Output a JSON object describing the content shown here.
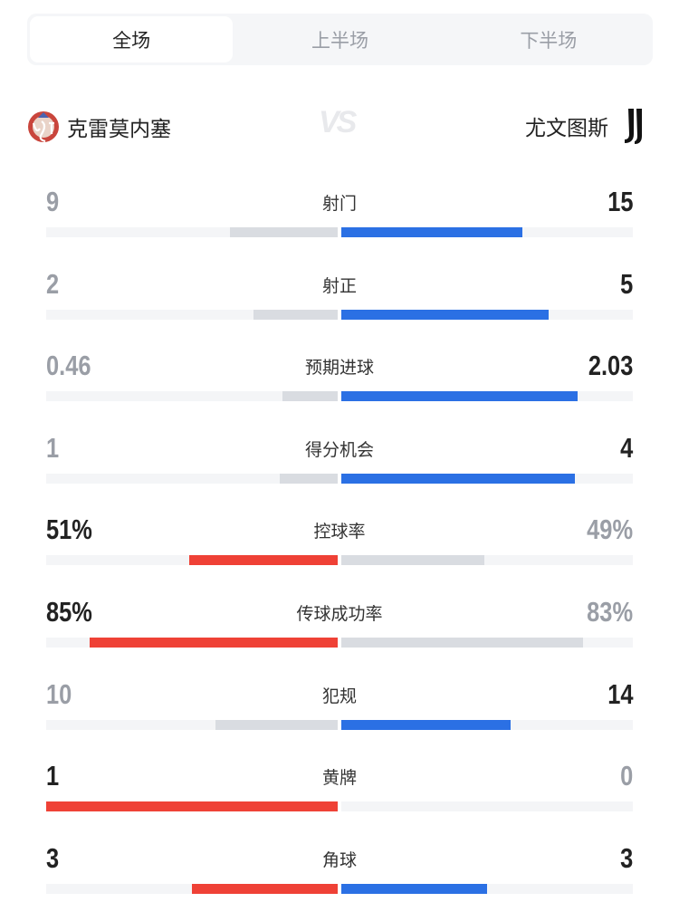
{
  "tabs": [
    {
      "label": "全场",
      "active": true
    },
    {
      "label": "上半场",
      "active": false
    },
    {
      "label": "下半场",
      "active": false
    }
  ],
  "home_team": {
    "name": "克雷莫内塞",
    "logo": "cremonese-crest"
  },
  "away_team": {
    "name": "尤文图斯",
    "logo": "juventus-j-logo"
  },
  "vs_label": "VS",
  "colors": {
    "home": "#ef4136",
    "away": "#2b70e4",
    "loser_bar": "#d9dce1",
    "track": "#f4f5f7",
    "leader_text": "#222222",
    "trailer_text": "#9a9ea6"
  },
  "stats": [
    {
      "label": "射门",
      "home": "9",
      "away": "15",
      "home_fill": 0.37,
      "away_fill": 0.62,
      "leader": "away"
    },
    {
      "label": "射正",
      "home": "2",
      "away": "5",
      "home_fill": 0.29,
      "away_fill": 0.71,
      "leader": "away"
    },
    {
      "label": "预期进球",
      "home": "0.46",
      "away": "2.03",
      "home_fill": 0.19,
      "away_fill": 0.81,
      "leader": "away"
    },
    {
      "label": "得分机会",
      "home": "1",
      "away": "4",
      "home_fill": 0.2,
      "away_fill": 0.8,
      "leader": "away"
    },
    {
      "label": "控球率",
      "home": "51%",
      "away": "49%",
      "home_fill": 0.51,
      "away_fill": 0.49,
      "leader": "home"
    },
    {
      "label": "传球成功率",
      "home": "85%",
      "away": "83%",
      "home_fill": 0.85,
      "away_fill": 0.83,
      "leader": "home"
    },
    {
      "label": "犯规",
      "home": "10",
      "away": "14",
      "home_fill": 0.42,
      "away_fill": 0.58,
      "leader": "away"
    },
    {
      "label": "黄牌",
      "home": "1",
      "away": "0",
      "home_fill": 1.0,
      "away_fill": 0,
      "leader": "home"
    },
    {
      "label": "角球",
      "home": "3",
      "away": "3",
      "home_fill": 0.5,
      "away_fill": 0.5,
      "leader": "both"
    }
  ]
}
